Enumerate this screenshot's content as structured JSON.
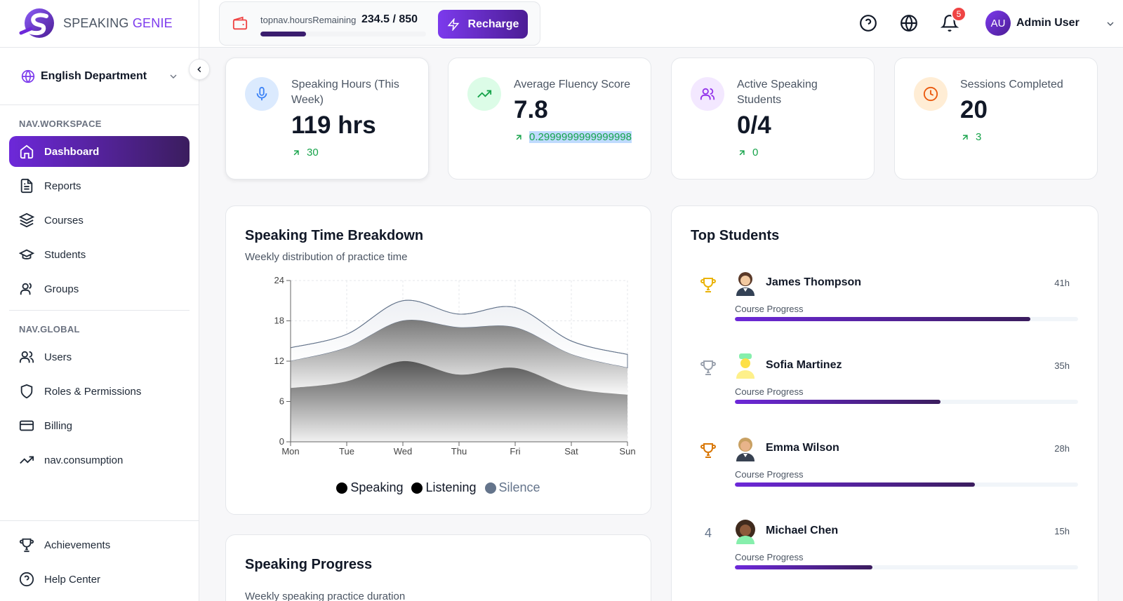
{
  "brand": {
    "name_a": "SPEAKING ",
    "name_b": "GENIE",
    "accent": "#7c3aed"
  },
  "sidebar": {
    "department": "English Department",
    "workspace_heading": "NAV.WORKSPACE",
    "workspace_items": [
      {
        "label": "Dashboard",
        "icon": "home-icon",
        "active": true
      },
      {
        "label": "Reports",
        "icon": "file-text-icon"
      },
      {
        "label": "Courses",
        "icon": "layers-icon"
      },
      {
        "label": "Students",
        "icon": "graduation-cap-icon"
      },
      {
        "label": "Groups",
        "icon": "users-icon"
      }
    ],
    "global_heading": "NAV.GLOBAL",
    "global_items": [
      {
        "label": "Users",
        "icon": "user-group-icon"
      },
      {
        "label": "Roles & Permissions",
        "icon": "shield-icon"
      },
      {
        "label": "Billing",
        "icon": "credit-card-icon"
      },
      {
        "label": "nav.consumption",
        "icon": "trending-up-icon"
      }
    ],
    "bottom_items": [
      {
        "label": "Achievements",
        "icon": "trophy-icon"
      },
      {
        "label": "Help Center",
        "icon": "help-circle-icon"
      }
    ]
  },
  "topbar": {
    "hours_key": "topnav.hoursRemaining",
    "hours_value": "234.5 / 850",
    "hours_progress": 0.276,
    "recharge_label": "Recharge",
    "notification_count": "5",
    "user_initials": "AU",
    "user_name": "Admin User"
  },
  "stats": [
    {
      "label": "Speaking Hours (This Week)",
      "value": "119 hrs",
      "delta": "30",
      "icon": "mic-icon",
      "color": "#3b82f6",
      "bg": "#dbeafe"
    },
    {
      "label": "Average Fluency Score",
      "value": "7.8",
      "delta": "0.2999999999999998",
      "icon": "trending-up-icon",
      "color": "#16a34a",
      "bg": "#dcfce7"
    },
    {
      "label": "Active Speaking Students",
      "value": "0/4",
      "delta": "0",
      "icon": "users-icon",
      "color": "#9333ea",
      "bg": "#f3e8ff"
    },
    {
      "label": "Sessions Completed",
      "value": "20",
      "delta": "3",
      "icon": "clock-icon",
      "color": "#ea580c",
      "bg": "#ffedd5"
    }
  ],
  "chart_card": {
    "title": "Speaking Time Breakdown",
    "subtitle": "Weekly distribution of practice time"
  },
  "chart_data": {
    "type": "area",
    "stacked": true,
    "categories": [
      "Mon",
      "Tue",
      "Wed",
      "Thu",
      "Fri",
      "Sat",
      "Sun"
    ],
    "series": [
      {
        "name": "Speaking",
        "values": [
          8,
          9,
          12,
          10,
          11,
          8,
          7
        ]
      },
      {
        "name": "Listening",
        "values": [
          4,
          5,
          6,
          7,
          6,
          5,
          4
        ]
      },
      {
        "name": "Silence",
        "values": [
          2,
          2,
          3,
          2,
          3,
          2,
          2
        ]
      }
    ],
    "ylim": [
      0,
      24
    ],
    "yticks": [
      0,
      6,
      12,
      18,
      24
    ],
    "grid": true,
    "legend": "bottom"
  },
  "top_students": {
    "title": "Top Students",
    "progress_label": "Course Progress",
    "items": [
      {
        "rank": "trophy-gold-icon",
        "name": "James Thompson",
        "hours": "41h",
        "progress": 0.86
      },
      {
        "rank": "trophy-silver-icon",
        "name": "Sofia Martinez",
        "hours": "35h",
        "progress": 0.6
      },
      {
        "rank": "trophy-bronze-icon",
        "name": "Emma Wilson",
        "hours": "28h",
        "progress": 0.7
      },
      {
        "rank": "4",
        "name": "Michael Chen",
        "hours": "15h",
        "progress": 0.4
      }
    ]
  },
  "progress_card": {
    "title": "Speaking Progress",
    "subtitle": "Weekly speaking practice duration"
  }
}
